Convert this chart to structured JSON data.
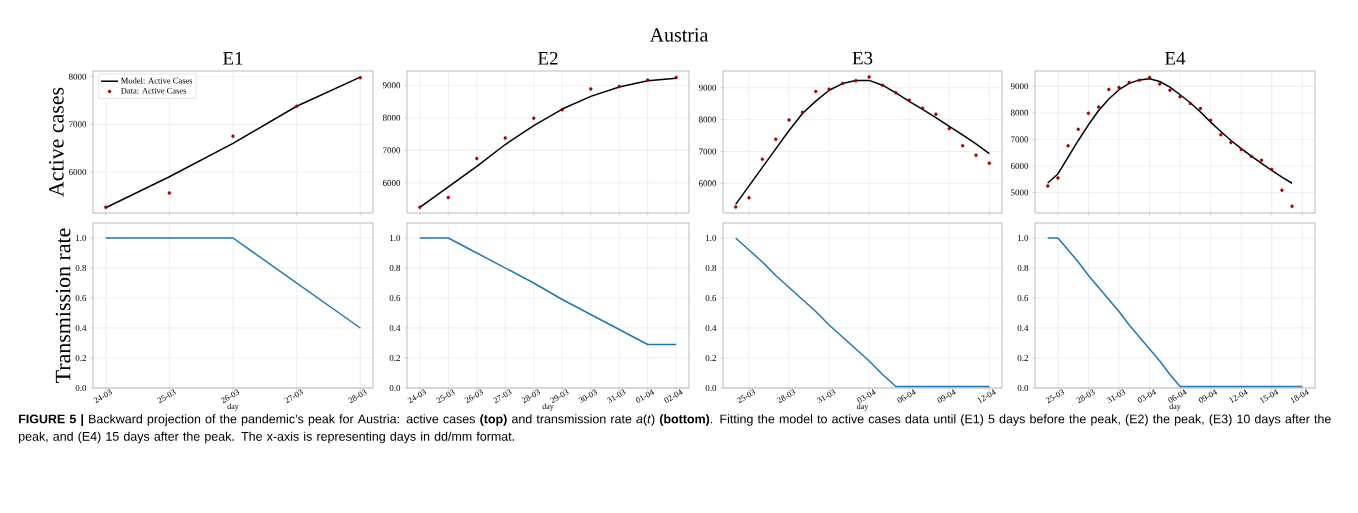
{
  "chart_data": [
    {
      "type": "line",
      "title": "E1",
      "ylabel": "Active cases",
      "annotations": [
        "Austria",
        "**FIGURE 5 |** Backward projection of the pandemic’s peak for Austria: active cases **(top)** and transmission rate *a*(*t*) **(bottom)**. Fitting the model to active cases data until (E1) 5 days before the peak, (E2) the peak, (E3) 10 days after the peak, and (E4) 15 days after the peak. The x-axis is representing days in dd/mm format."
      ],
      "categories": [
        null,
        null,
        null,
        null,
        null
      ],
      "ylim": [
        5140,
        8120
      ],
      "yticks": [
        6000,
        7000,
        8000
      ],
      "tick_labels": "y",
      "grid": true,
      "legend": "top left",
      "series": [
        {
          "name": "Model: Active Cases",
          "type": "line",
          "color": "#000000",
          "values": [
            5250,
            5900,
            6600,
            7380,
            7990
          ]
        },
        {
          "name": "Data: Active Cases",
          "type": "scatter",
          "marker": "circle",
          "color": "#a50000",
          "values": [
            5260,
            5560,
            6750,
            7380,
            7980
          ]
        }
      ]
    },
    {
      "type": "line",
      "title": "E2",
      "categories": [
        null,
        null,
        null,
        null,
        null,
        null,
        null,
        null,
        null,
        null
      ],
      "ylim": [
        5075,
        9440
      ],
      "yticks": [
        6000,
        7000,
        8000,
        9000
      ],
      "tick_labels": "y",
      "grid": true,
      "series": [
        {
          "type": "line",
          "color": "#000000",
          "values": [
            5250,
            5880,
            6510,
            7180,
            7760,
            8270,
            8660,
            8950,
            9140,
            9220
          ]
        },
        {
          "type": "scatter",
          "marker": "circle",
          "color": "#a50000",
          "values": [
            5250,
            5550,
            6750,
            7380,
            7990,
            8250,
            8890,
            8960,
            9160,
            9240
          ]
        }
      ]
    },
    {
      "type": "line",
      "title": "E3",
      "categories": [
        null,
        null,
        null,
        null,
        null,
        null,
        null,
        null,
        null,
        null,
        null,
        null,
        null,
        null,
        null,
        null,
        null,
        null,
        null,
        null
      ],
      "ylim": [
        5070,
        9525
      ],
      "yticks": [
        6000,
        7000,
        8000,
        9000
      ],
      "tick_labels": "y",
      "grid": true,
      "series": [
        {
          "type": "line",
          "color": "#000000",
          "values": [
            5340,
            5920,
            6500,
            7080,
            7660,
            8190,
            8580,
            8920,
            9130,
            9230,
            9230,
            9080,
            8840,
            8570,
            8320,
            8060,
            7790,
            7520,
            7240,
            6930
          ]
        },
        {
          "type": "scatter",
          "marker": "circle",
          "color": "#a50000",
          "values": [
            5260,
            5550,
            6760,
            7380,
            7990,
            8230,
            8880,
            8950,
            9130,
            9220,
            9340,
            9080,
            8840,
            8610,
            8360,
            8170,
            7720,
            7180,
            6880,
            6630
          ]
        }
      ]
    },
    {
      "type": "line",
      "title": "E4",
      "categories": [
        null,
        null,
        null,
        null,
        null,
        null,
        null,
        null,
        null,
        null,
        null,
        null,
        null,
        null,
        null,
        null,
        null,
        null,
        null,
        null,
        null,
        null,
        null,
        null,
        null,
        null
      ],
      "ylim": [
        4230,
        9575
      ],
      "yticks": [
        5000,
        6000,
        7000,
        8000,
        9000
      ],
      "tick_labels": "y",
      "grid": true,
      "series": [
        {
          "type": "line",
          "color": "#000000",
          "values": [
            5360,
            5700,
            6330,
            6960,
            7550,
            8090,
            8520,
            8870,
            9110,
            9240,
            9280,
            9180,
            8970,
            8680,
            8380,
            8030,
            7650,
            7300,
            6960,
            6650,
            6370,
            6100,
            5830,
            5580,
            5350,
            null
          ]
        },
        {
          "type": "scatter",
          "marker": "circle",
          "color": "#a50000",
          "values": [
            5250,
            5550,
            6760,
            7380,
            7980,
            8220,
            8880,
            8950,
            9140,
            9230,
            9330,
            9090,
            8850,
            8610,
            8350,
            8160,
            7720,
            7180,
            6880,
            6620,
            6360,
            6220,
            5870,
            5090,
            4480,
            null
          ]
        }
      ]
    },
    {
      "type": "line",
      "ylabel": "Transmission rate",
      "xlabel": "day",
      "categories": [
        "24-03",
        "25-03",
        "26-03",
        "27-03",
        "28-03"
      ],
      "ylim": [
        0,
        1.1
      ],
      "yticks": [
        {
          "value": 0,
          "label": "0.0"
        },
        {
          "value": 0.2,
          "label": "0.2"
        },
        {
          "value": 0.4,
          "label": "0.4"
        },
        {
          "value": 0.6,
          "label": "0.6"
        },
        {
          "value": 0.8,
          "label": "0.8"
        },
        {
          "value": 1,
          "label": "1.0"
        }
      ],
      "grid": true,
      "series": [
        {
          "color": "#1f77b4",
          "values": [
            1,
            1,
            1,
            0.7,
            0.4
          ]
        }
      ]
    },
    {
      "type": "line",
      "xlabel": "day",
      "categories": [
        "24-03",
        "25-03",
        "26-03",
        "27-03",
        "28-03",
        "29-03",
        "30-03",
        "31-03",
        "01-04",
        "02-04"
      ],
      "ylim": [
        0,
        1.1
      ],
      "yticks": [
        {
          "value": 0,
          "label": "0.0"
        },
        {
          "value": 0.2,
          "label": "0.2"
        },
        {
          "value": 0.4,
          "label": "0.4"
        },
        {
          "value": 0.6,
          "label": "0.6"
        },
        {
          "value": 0.8,
          "label": "0.8"
        },
        {
          "value": 1,
          "label": "1.0"
        }
      ],
      "grid": true,
      "series": [
        {
          "color": "#1f77b4",
          "values": [
            1,
            1,
            0.9,
            0.8,
            0.7,
            0.59,
            0.49,
            0.39,
            0.29,
            0.29
          ]
        }
      ]
    },
    {
      "type": "line",
      "xlabel": "day",
      "categories": [
        null,
        "25-03",
        null,
        null,
        "28-03",
        null,
        null,
        "31-03",
        null,
        null,
        "03-04",
        null,
        null,
        "06-04",
        null,
        null,
        "09-04",
        null,
        null,
        "12-04"
      ],
      "ylim": [
        0,
        1.1
      ],
      "yticks": [
        {
          "value": 0,
          "label": "0.0"
        },
        {
          "value": 0.2,
          "label": "0.2"
        },
        {
          "value": 0.4,
          "label": "0.4"
        },
        {
          "value": 0.6,
          "label": "0.6"
        },
        {
          "value": 0.8,
          "label": "0.8"
        },
        {
          "value": 1,
          "label": "1.0"
        }
      ],
      "grid": true,
      "series": [
        {
          "color": "#1f77b4",
          "values": [
            1,
            0.92,
            0.84,
            0.75,
            0.67,
            0.59,
            0.51,
            0.42,
            0.34,
            0.26,
            0.18,
            0.09,
            0.01,
            0.01,
            0.01,
            0.01,
            0.01,
            0.01,
            0.01,
            0.01
          ]
        }
      ]
    },
    {
      "type": "line",
      "xlabel": "day",
      "categories": [
        null,
        "25-03",
        null,
        null,
        "28-03",
        null,
        null,
        "31-03",
        null,
        null,
        "03-04",
        null,
        null,
        "06-04",
        null,
        null,
        "09-04",
        null,
        null,
        "12-04",
        null,
        null,
        "15-04",
        null,
        null,
        "18-04"
      ],
      "ylim": [
        0,
        1.1
      ],
      "yticks": [
        {
          "value": 0,
          "label": "0.0"
        },
        {
          "value": 0.2,
          "label": "0.2"
        },
        {
          "value": 0.4,
          "label": "0.4"
        },
        {
          "value": 0.6,
          "label": "0.6"
        },
        {
          "value": 0.8,
          "label": "0.8"
        },
        {
          "value": 1,
          "label": "1.0"
        }
      ],
      "grid": true,
      "series": [
        {
          "color": "#1f77b4",
          "values": [
            1,
            1,
            0.92,
            0.84,
            0.75,
            0.67,
            0.59,
            0.51,
            0.42,
            0.34,
            0.26,
            0.18,
            0.09,
            0.01,
            0.01,
            0.01,
            0.01,
            0.01,
            0.01,
            0.01,
            0.01,
            0.01,
            0.01,
            0.01,
            0.01,
            0.01
          ]
        }
      ]
    }
  ]
}
